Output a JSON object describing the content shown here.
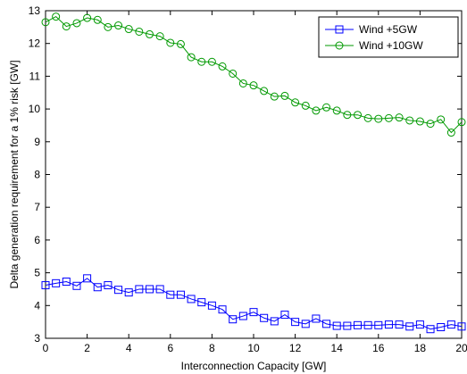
{
  "chart_data": {
    "type": "line",
    "title": "",
    "xlabel": "Interconnection Capacity [GW]",
    "ylabel": "Delta generation requirement for a 1% risk [GW]",
    "xlim": [
      0,
      20
    ],
    "ylim": [
      3,
      13
    ],
    "xticks": [
      0,
      2,
      4,
      6,
      8,
      10,
      12,
      14,
      16,
      18,
      20
    ],
    "yticks": [
      3,
      4,
      5,
      6,
      7,
      8,
      9,
      10,
      11,
      12,
      13
    ],
    "grid": false,
    "legend_position": "top-right",
    "x": [
      0,
      0.5,
      1,
      1.5,
      2,
      2.5,
      3,
      3.5,
      4,
      4.5,
      5,
      5.5,
      6,
      6.5,
      7,
      7.5,
      8,
      8.5,
      9,
      9.5,
      10,
      10.5,
      11,
      11.5,
      12,
      12.5,
      13,
      13.5,
      14,
      14.5,
      15,
      15.5,
      16,
      16.5,
      17,
      17.5,
      18,
      18.5,
      19,
      19.5,
      20
    ],
    "series": [
      {
        "name": "Wind +5GW",
        "color": "#0000ff",
        "marker": "square",
        "values": [
          4.62,
          4.68,
          4.73,
          4.6,
          4.83,
          4.56,
          4.62,
          4.48,
          4.4,
          4.5,
          4.5,
          4.5,
          4.33,
          4.33,
          4.2,
          4.1,
          4.0,
          3.88,
          3.58,
          3.68,
          3.8,
          3.62,
          3.52,
          3.72,
          3.5,
          3.44,
          3.6,
          3.44,
          3.38,
          3.38,
          3.4,
          3.4,
          3.4,
          3.42,
          3.42,
          3.36,
          3.42,
          3.28,
          3.34,
          3.42,
          3.36
        ]
      },
      {
        "name": "Wind +10GW",
        "color": "#009900",
        "marker": "circle",
        "values": [
          12.65,
          12.82,
          12.52,
          12.62,
          12.78,
          12.72,
          12.5,
          12.55,
          12.44,
          12.36,
          12.28,
          12.22,
          12.02,
          11.98,
          11.58,
          11.44,
          11.44,
          11.3,
          11.08,
          10.78,
          10.72,
          10.55,
          10.38,
          10.4,
          10.2,
          10.1,
          9.95,
          10.05,
          9.95,
          9.82,
          9.82,
          9.72,
          9.7,
          9.72,
          9.74,
          9.65,
          9.62,
          9.55,
          9.68,
          9.28,
          9.6
        ]
      }
    ]
  }
}
